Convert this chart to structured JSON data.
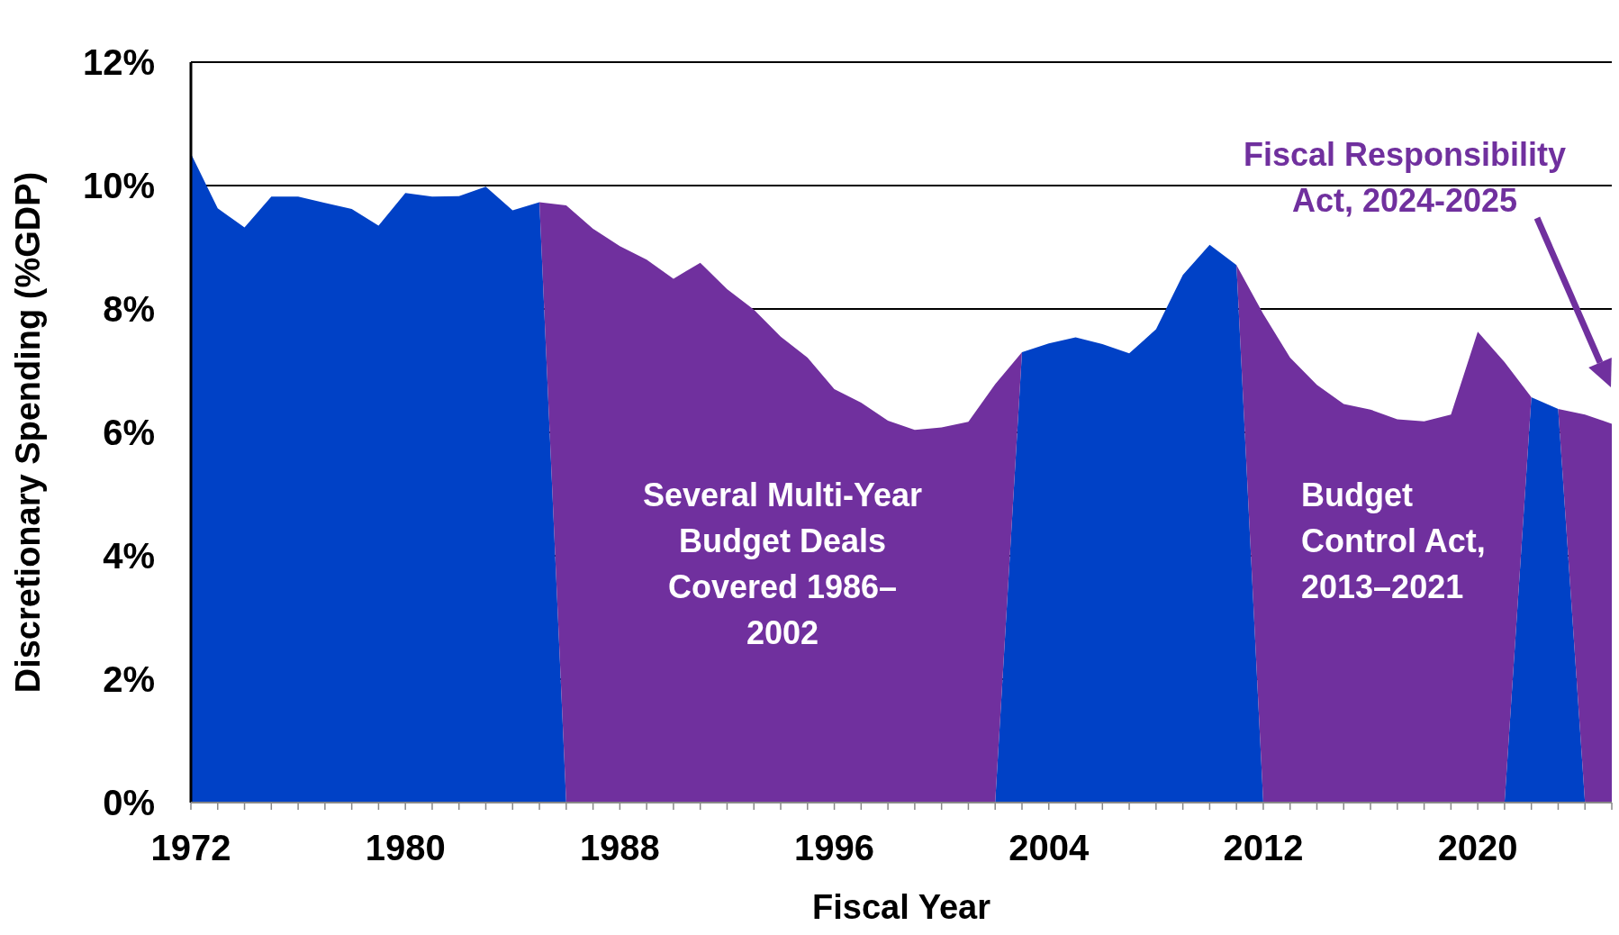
{
  "chart_data": {
    "type": "area",
    "stacked": true,
    "xlabel": "Fiscal Year",
    "ylabel": "Discretionary Spending (%GDP)",
    "x": [
      1972,
      1973,
      1974,
      1975,
      1976,
      1977,
      1978,
      1979,
      1980,
      1981,
      1982,
      1983,
      1984,
      1985,
      1986,
      1987,
      1988,
      1989,
      1990,
      1991,
      1992,
      1993,
      1994,
      1995,
      1996,
      1997,
      1998,
      1999,
      2000,
      2001,
      2002,
      2003,
      2004,
      2005,
      2006,
      2007,
      2008,
      2009,
      2010,
      2011,
      2012,
      2013,
      2014,
      2015,
      2016,
      2017,
      2018,
      2019,
      2020,
      2021,
      2022,
      2023,
      2024,
      2025
    ],
    "series": [
      {
        "color": "#0041c6",
        "values": [
          10.52,
          9.63,
          9.32,
          9.82,
          9.82,
          9.72,
          9.62,
          9.35,
          9.88,
          9.82,
          9.83,
          9.98,
          9.6,
          9.73,
          0,
          0,
          0,
          0,
          0,
          0,
          0,
          0,
          0,
          0,
          0,
          0,
          0,
          0,
          0,
          0,
          0,
          7.3,
          7.44,
          7.54,
          7.43,
          7.28,
          7.67,
          8.55,
          9.04,
          8.71,
          0,
          0,
          0,
          0,
          0,
          0,
          0,
          0,
          0,
          0,
          6.57,
          6.38,
          0,
          0
        ]
      },
      {
        "color": "#70309e",
        "values": [
          null,
          null,
          null,
          null,
          null,
          null,
          null,
          null,
          null,
          null,
          null,
          null,
          null,
          0,
          9.68,
          9.3,
          9.02,
          8.8,
          8.49,
          8.75,
          8.32,
          7.99,
          7.55,
          7.21,
          6.7,
          6.48,
          6.19,
          6.04,
          6.08,
          6.17,
          6.78,
          0,
          null,
          null,
          null,
          null,
          null,
          null,
          null,
          0,
          7.92,
          7.21,
          6.77,
          6.46,
          6.37,
          6.21,
          6.18,
          6.29,
          7.63,
          7.14,
          0,
          0,
          6.29,
          6.14
        ]
      }
    ],
    "xlim": [
      1972,
      2025
    ],
    "xticks": [
      1972,
      {
        "value": 1973,
        "label": null
      },
      {
        "value": 1974,
        "label": null
      },
      {
        "value": 1975,
        "label": null
      },
      {
        "value": 1976,
        "label": null
      },
      {
        "value": 1977,
        "label": null
      },
      {
        "value": 1978,
        "label": null
      },
      {
        "value": 1979,
        "label": null
      },
      1980,
      {
        "value": 1981,
        "label": null
      },
      {
        "value": 1982,
        "label": null
      },
      {
        "value": 1983,
        "label": null
      },
      {
        "value": 1984,
        "label": null
      },
      {
        "value": 1985,
        "label": null
      },
      {
        "value": 1986,
        "label": null
      },
      {
        "value": 1987,
        "label": null
      },
      1988,
      {
        "value": 1989,
        "label": null
      },
      {
        "value": 1990,
        "label": null
      },
      {
        "value": 1991,
        "label": null
      },
      {
        "value": 1992,
        "label": null
      },
      {
        "value": 1993,
        "label": null
      },
      {
        "value": 1994,
        "label": null
      },
      {
        "value": 1995,
        "label": null
      },
      1996,
      {
        "value": 1997,
        "label": null
      },
      {
        "value": 1998,
        "label": null
      },
      {
        "value": 1999,
        "label": null
      },
      {
        "value": 2000,
        "label": null
      },
      {
        "value": 2001,
        "label": null
      },
      {
        "value": 2002,
        "label": null
      },
      {
        "value": 2003,
        "label": null
      },
      2004,
      {
        "value": 2005,
        "label": null
      },
      {
        "value": 2006,
        "label": null
      },
      {
        "value": 2007,
        "label": null
      },
      {
        "value": 2008,
        "label": null
      },
      {
        "value": 2009,
        "label": null
      },
      {
        "value": 2010,
        "label": null
      },
      {
        "value": 2011,
        "label": null
      },
      2012,
      {
        "value": 2013,
        "label": null
      },
      {
        "value": 2014,
        "label": null
      },
      {
        "value": 2015,
        "label": null
      },
      {
        "value": 2016,
        "label": null
      },
      {
        "value": 2017,
        "label": null
      },
      {
        "value": 2018,
        "label": null
      },
      {
        "value": 2019,
        "label": null
      },
      2020,
      {
        "value": 2021,
        "label": null
      },
      {
        "value": 2022,
        "label": null
      },
      {
        "value": 2023,
        "label": null
      },
      {
        "value": 2024,
        "label": null
      },
      {
        "value": 2025,
        "label": null
      }
    ],
    "ylim": [
      0,
      12
    ],
    "yticks": [
      {
        "value": 0,
        "label": "0%"
      },
      {
        "value": 2,
        "label": "2%"
      },
      {
        "value": 4,
        "label": "4%"
      },
      {
        "value": 6,
        "label": "6%"
      },
      {
        "value": 8,
        "label": "8%"
      },
      {
        "value": 10,
        "label": "10%"
      },
      {
        "value": 12,
        "label": "12%"
      }
    ],
    "grid": "y",
    "annotations": [
      "Several Multi-Year\nBudget Deals\nCovered 1986–\n2002",
      "Budget\nControl Act,\n2013–2021",
      "Fiscal Responsibility\nAct, 2024-2025"
    ]
  }
}
